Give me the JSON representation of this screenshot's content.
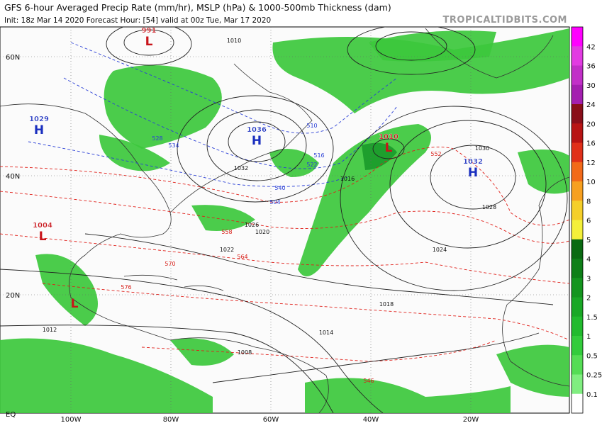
{
  "header": {
    "title": "GFS 6-hour Averaged Precip Rate (mm/hr), MSLP (hPa) & 1000-500mb Thickness (dam)",
    "subtitle": "Init: 18z Mar 14 2020   Forecast Hour: [54]   valid at 00z Tue, Mar 17 2020",
    "site": "TROPICALTIDBITS.COM"
  },
  "axes": {
    "lat_labels": [
      "60N",
      "40N",
      "20N",
      "EQ"
    ],
    "lon_labels": [
      "100W",
      "80W",
      "60W",
      "40W",
      "20W"
    ]
  },
  "colorbar": {
    "labels": [
      "42",
      "36",
      "30",
      "24",
      "20",
      "16",
      "12",
      "10",
      "8",
      "6",
      "5",
      "4",
      "3",
      "2",
      "1.5",
      "1",
      "0.5",
      "0.25",
      "0.1"
    ],
    "colors": [
      "#ff00ff",
      "#e23be2",
      "#c22fc8",
      "#a41fb0",
      "#8a0f1a",
      "#b81414",
      "#e0301a",
      "#f26a1a",
      "#f7a020",
      "#f5cf2a",
      "#f4f03a",
      "#0a6a12",
      "#0e7f18",
      "#14951f",
      "#1aa826",
      "#22bb2e",
      "#33cc3c",
      "#55dd55",
      "#80ee80",
      "#ffffff"
    ]
  },
  "centers": [
    {
      "letter": "L",
      "value": "991"
    },
    {
      "letter": "H",
      "value": "1029"
    },
    {
      "letter": "H",
      "value": "1036"
    },
    {
      "letter": "L",
      "value": "1010"
    },
    {
      "letter": "H",
      "value": "1032"
    },
    {
      "letter": "L",
      "value": "1004"
    },
    {
      "letter": "L"
    }
  ],
  "contour_labels": [
    "1010",
    "1016",
    "1020",
    "1024",
    "1028",
    "1032",
    "1018",
    "1014",
    "1012",
    "1008",
    "1022",
    "1026",
    "1030",
    "552",
    "558",
    "564",
    "570",
    "576",
    "546",
    "504",
    "510",
    "516",
    "522",
    "528",
    "534",
    "540"
  ]
}
